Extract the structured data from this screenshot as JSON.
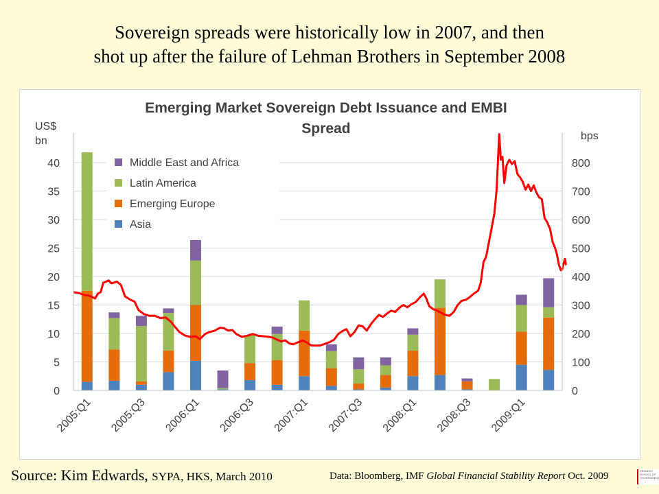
{
  "slide": {
    "title_line1": "Sovereign spreads were historically low in 2007,  and then",
    "title_line2": "shot up after the failure of Lehman Brothers in September 2008",
    "source_label": "Source: Kim Edwards,",
    "source_detail": "SYPA, HKS, March 2010",
    "data_prefix": "Data: Bloomberg, IMF",
    "data_report": "Global Financial Stability Report",
    "data_suffix": "Oct. 2009",
    "logo_text": "KENNEDY SCHOOL OF GOVERNMENT"
  },
  "chart_data": {
    "type": "bar",
    "title_line1": "Emerging Market Sovereign Debt Issuance and EMBI",
    "title_line2": "Spread",
    "y_left_label_line1": "US$",
    "y_left_label_line2": "bn",
    "y_right_label": "bps",
    "y_left_range": [
      0,
      40
    ],
    "y_left_ticks": [
      0,
      5,
      10,
      15,
      20,
      25,
      30,
      35,
      40
    ],
    "y_right_range": [
      0,
      800
    ],
    "y_right_ticks": [
      0,
      100,
      200,
      300,
      400,
      500,
      600,
      700,
      800
    ],
    "x_tick_labels": [
      "2005:Q1",
      "2005:Q3",
      "2006:Q1",
      "2006:Q3",
      "2007:Q1",
      "2007:Q3",
      "2008:Q1",
      "2008:Q3",
      "2009:Q1"
    ],
    "categories": [
      "2005:Q1",
      "2005:Q2",
      "2005:Q3",
      "2005:Q4",
      "2006:Q1",
      "2006:Q2",
      "2006:Q3",
      "2006:Q4",
      "2007:Q1",
      "2007:Q2",
      "2007:Q3",
      "2007:Q4",
      "2008:Q1",
      "2008:Q2",
      "2008:Q3",
      "2008:Q4",
      "2009:Q1",
      "2009:Q2"
    ],
    "grid": true,
    "legend_position": "top-left",
    "series": [
      {
        "name": "Asia",
        "color": "#4f81bd",
        "values": [
          1.5,
          1.7,
          1.0,
          3.2,
          5.2,
          0.2,
          1.8,
          1.0,
          2.5,
          0.8,
          0.2,
          0.5,
          2.5,
          2.7,
          0.2,
          0.0,
          4.5,
          3.6
        ]
      },
      {
        "name": "Emerging Europe",
        "color": "#e46c0a",
        "values": [
          16.0,
          5.5,
          0.6,
          3.8,
          9.8,
          0.0,
          3.0,
          4.3,
          8.0,
          3.1,
          1.0,
          2.2,
          4.5,
          11.8,
          1.4,
          0.0,
          5.8,
          9.2
        ]
      },
      {
        "name": "Latin America",
        "color": "#9bbb59",
        "values": [
          24.3,
          5.5,
          9.7,
          6.6,
          7.8,
          0.2,
          4.9,
          4.6,
          5.3,
          3.0,
          2.5,
          1.7,
          2.8,
          5.0,
          0.0,
          2.0,
          4.7,
          1.8
        ]
      },
      {
        "name": "Middle East and Africa",
        "color": "#8064a2",
        "values": [
          0.0,
          1.0,
          1.8,
          0.8,
          3.6,
          3.1,
          0.0,
          1.3,
          0.0,
          1.2,
          2.1,
          1.4,
          1.1,
          0.0,
          0.5,
          0.0,
          1.8,
          5.1
        ]
      }
    ],
    "spread_line": {
      "color": "#ff0000",
      "axis": "right",
      "points": [
        [
          0,
          345
        ],
        [
          0.2,
          342
        ],
        [
          0.4,
          335
        ],
        [
          0.6,
          332
        ],
        [
          0.8,
          323
        ],
        [
          0.9,
          340
        ],
        [
          1.0,
          345
        ],
        [
          1.1,
          378
        ],
        [
          1.3,
          386
        ],
        [
          1.4,
          376
        ],
        [
          1.6,
          382
        ],
        [
          1.75,
          370
        ],
        [
          1.9,
          330
        ],
        [
          2.1,
          318
        ],
        [
          2.25,
          312
        ],
        [
          2.4,
          282
        ],
        [
          2.6,
          268
        ],
        [
          2.8,
          262
        ],
        [
          3.0,
          262
        ],
        [
          3.2,
          254
        ],
        [
          3.4,
          256
        ],
        [
          3.6,
          240
        ],
        [
          3.75,
          222
        ],
        [
          3.9,
          205
        ],
        [
          4.1,
          193
        ],
        [
          4.3,
          188
        ],
        [
          4.5,
          190
        ],
        [
          4.65,
          180
        ],
        [
          4.85,
          198
        ],
        [
          5.0,
          205
        ],
        [
          5.2,
          210
        ],
        [
          5.4,
          220
        ],
        [
          5.55,
          218
        ],
        [
          5.7,
          210
        ],
        [
          5.85,
          212
        ],
        [
          6.0,
          198
        ],
        [
          6.2,
          188
        ],
        [
          6.4,
          192
        ],
        [
          6.6,
          198
        ],
        [
          6.8,
          192
        ],
        [
          7.0,
          190
        ],
        [
          7.2,
          188
        ],
        [
          7.35,
          185
        ],
        [
          7.5,
          178
        ],
        [
          7.65,
          172
        ],
        [
          7.8,
          176
        ],
        [
          7.95,
          165
        ],
        [
          8.1,
          162
        ],
        [
          8.3,
          170
        ],
        [
          8.45,
          175
        ],
        [
          8.6,
          168
        ],
        [
          8.75,
          158
        ],
        [
          8.9,
          157
        ],
        [
          9.1,
          158
        ],
        [
          9.3,
          165
        ],
        [
          9.45,
          170
        ],
        [
          9.6,
          178
        ],
        [
          9.75,
          198
        ],
        [
          9.9,
          208
        ],
        [
          10.05,
          215
        ],
        [
          10.2,
          190
        ],
        [
          10.35,
          205
        ],
        [
          10.5,
          228
        ],
        [
          10.65,
          225
        ],
        [
          10.8,
          210
        ],
        [
          10.95,
          232
        ],
        [
          11.1,
          250
        ],
        [
          11.25,
          265
        ],
        [
          11.4,
          258
        ],
        [
          11.55,
          270
        ],
        [
          11.7,
          280
        ],
        [
          11.85,
          276
        ],
        [
          12.0,
          290
        ],
        [
          12.15,
          300
        ],
        [
          12.3,
          292
        ],
        [
          12.45,
          303
        ],
        [
          12.6,
          310
        ],
        [
          12.75,
          326
        ],
        [
          12.9,
          340
        ],
        [
          13.0,
          322
        ],
        [
          13.1,
          296
        ],
        [
          13.25,
          285
        ],
        [
          13.4,
          280
        ],
        [
          13.55,
          272
        ],
        [
          13.7,
          265
        ],
        [
          13.85,
          262
        ],
        [
          14.0,
          275
        ],
        [
          14.15,
          300
        ],
        [
          14.3,
          315
        ],
        [
          14.45,
          318
        ],
        [
          14.6,
          328
        ],
        [
          14.75,
          340
        ],
        [
          14.9,
          350
        ],
        [
          15.0,
          378
        ],
        [
          15.1,
          450
        ],
        [
          15.2,
          470
        ],
        [
          15.3,
          520
        ],
        [
          15.4,
          570
        ],
        [
          15.5,
          620
        ],
        [
          15.58,
          700
        ],
        [
          15.62,
          780
        ],
        [
          15.68,
          900
        ],
        [
          15.74,
          810
        ],
        [
          15.8,
          820
        ],
        [
          15.87,
          728
        ],
        [
          15.95,
          790
        ],
        [
          16.05,
          810
        ],
        [
          16.15,
          795
        ],
        [
          16.25,
          805
        ],
        [
          16.35,
          760
        ],
        [
          16.45,
          748
        ],
        [
          16.55,
          732
        ],
        [
          16.65,
          705
        ],
        [
          16.75,
          723
        ],
        [
          16.85,
          700
        ],
        [
          16.95,
          720
        ],
        [
          17.05,
          695
        ],
        [
          17.15,
          678
        ],
        [
          17.25,
          672
        ],
        [
          17.35,
          605
        ],
        [
          17.45,
          590
        ],
        [
          17.55,
          568
        ],
        [
          17.65,
          520
        ],
        [
          17.72,
          505
        ],
        [
          17.8,
          480
        ],
        [
          17.88,
          440
        ],
        [
          17.95,
          422
        ],
        [
          18.0,
          425
        ],
        [
          18.05,
          445
        ],
        [
          18.1,
          462
        ],
        [
          18.14,
          440
        ]
      ]
    }
  }
}
